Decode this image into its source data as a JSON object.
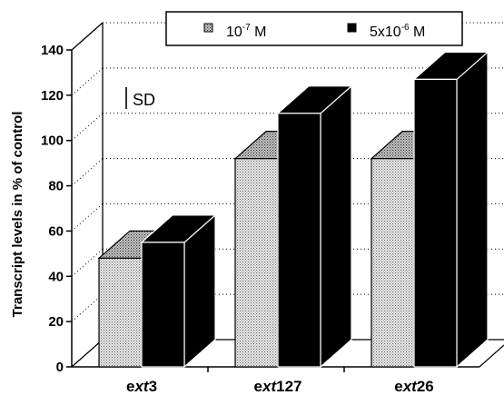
{
  "chart_data": {
    "type": "bar",
    "categories": [
      {
        "prefix": "e",
        "italic": "xt",
        "suffix": "3"
      },
      {
        "prefix": "e",
        "italic": "xt",
        "suffix": "127"
      },
      {
        "prefix": "e",
        "italic": "xt",
        "suffix": "26"
      }
    ],
    "series": [
      {
        "name_base": "10",
        "name_exp": "-7",
        "name_unit": " M",
        "values": [
          48,
          92,
          92
        ],
        "color": "#d4d4d4",
        "pattern": "dotted"
      },
      {
        "name_base": "5x10",
        "name_exp": "-6",
        "name_unit": " M",
        "values": [
          55,
          112,
          127
        ],
        "color": "#000000",
        "pattern": "solid"
      }
    ],
    "ylabel": "Transcript levels in % of control",
    "ylim": [
      0,
      140
    ],
    "yticks": [
      0,
      20,
      40,
      60,
      80,
      100,
      120,
      140
    ],
    "grid": true,
    "legend_position": "top",
    "error_bar_note": {
      "symbol": "|",
      "text": "SD"
    }
  }
}
